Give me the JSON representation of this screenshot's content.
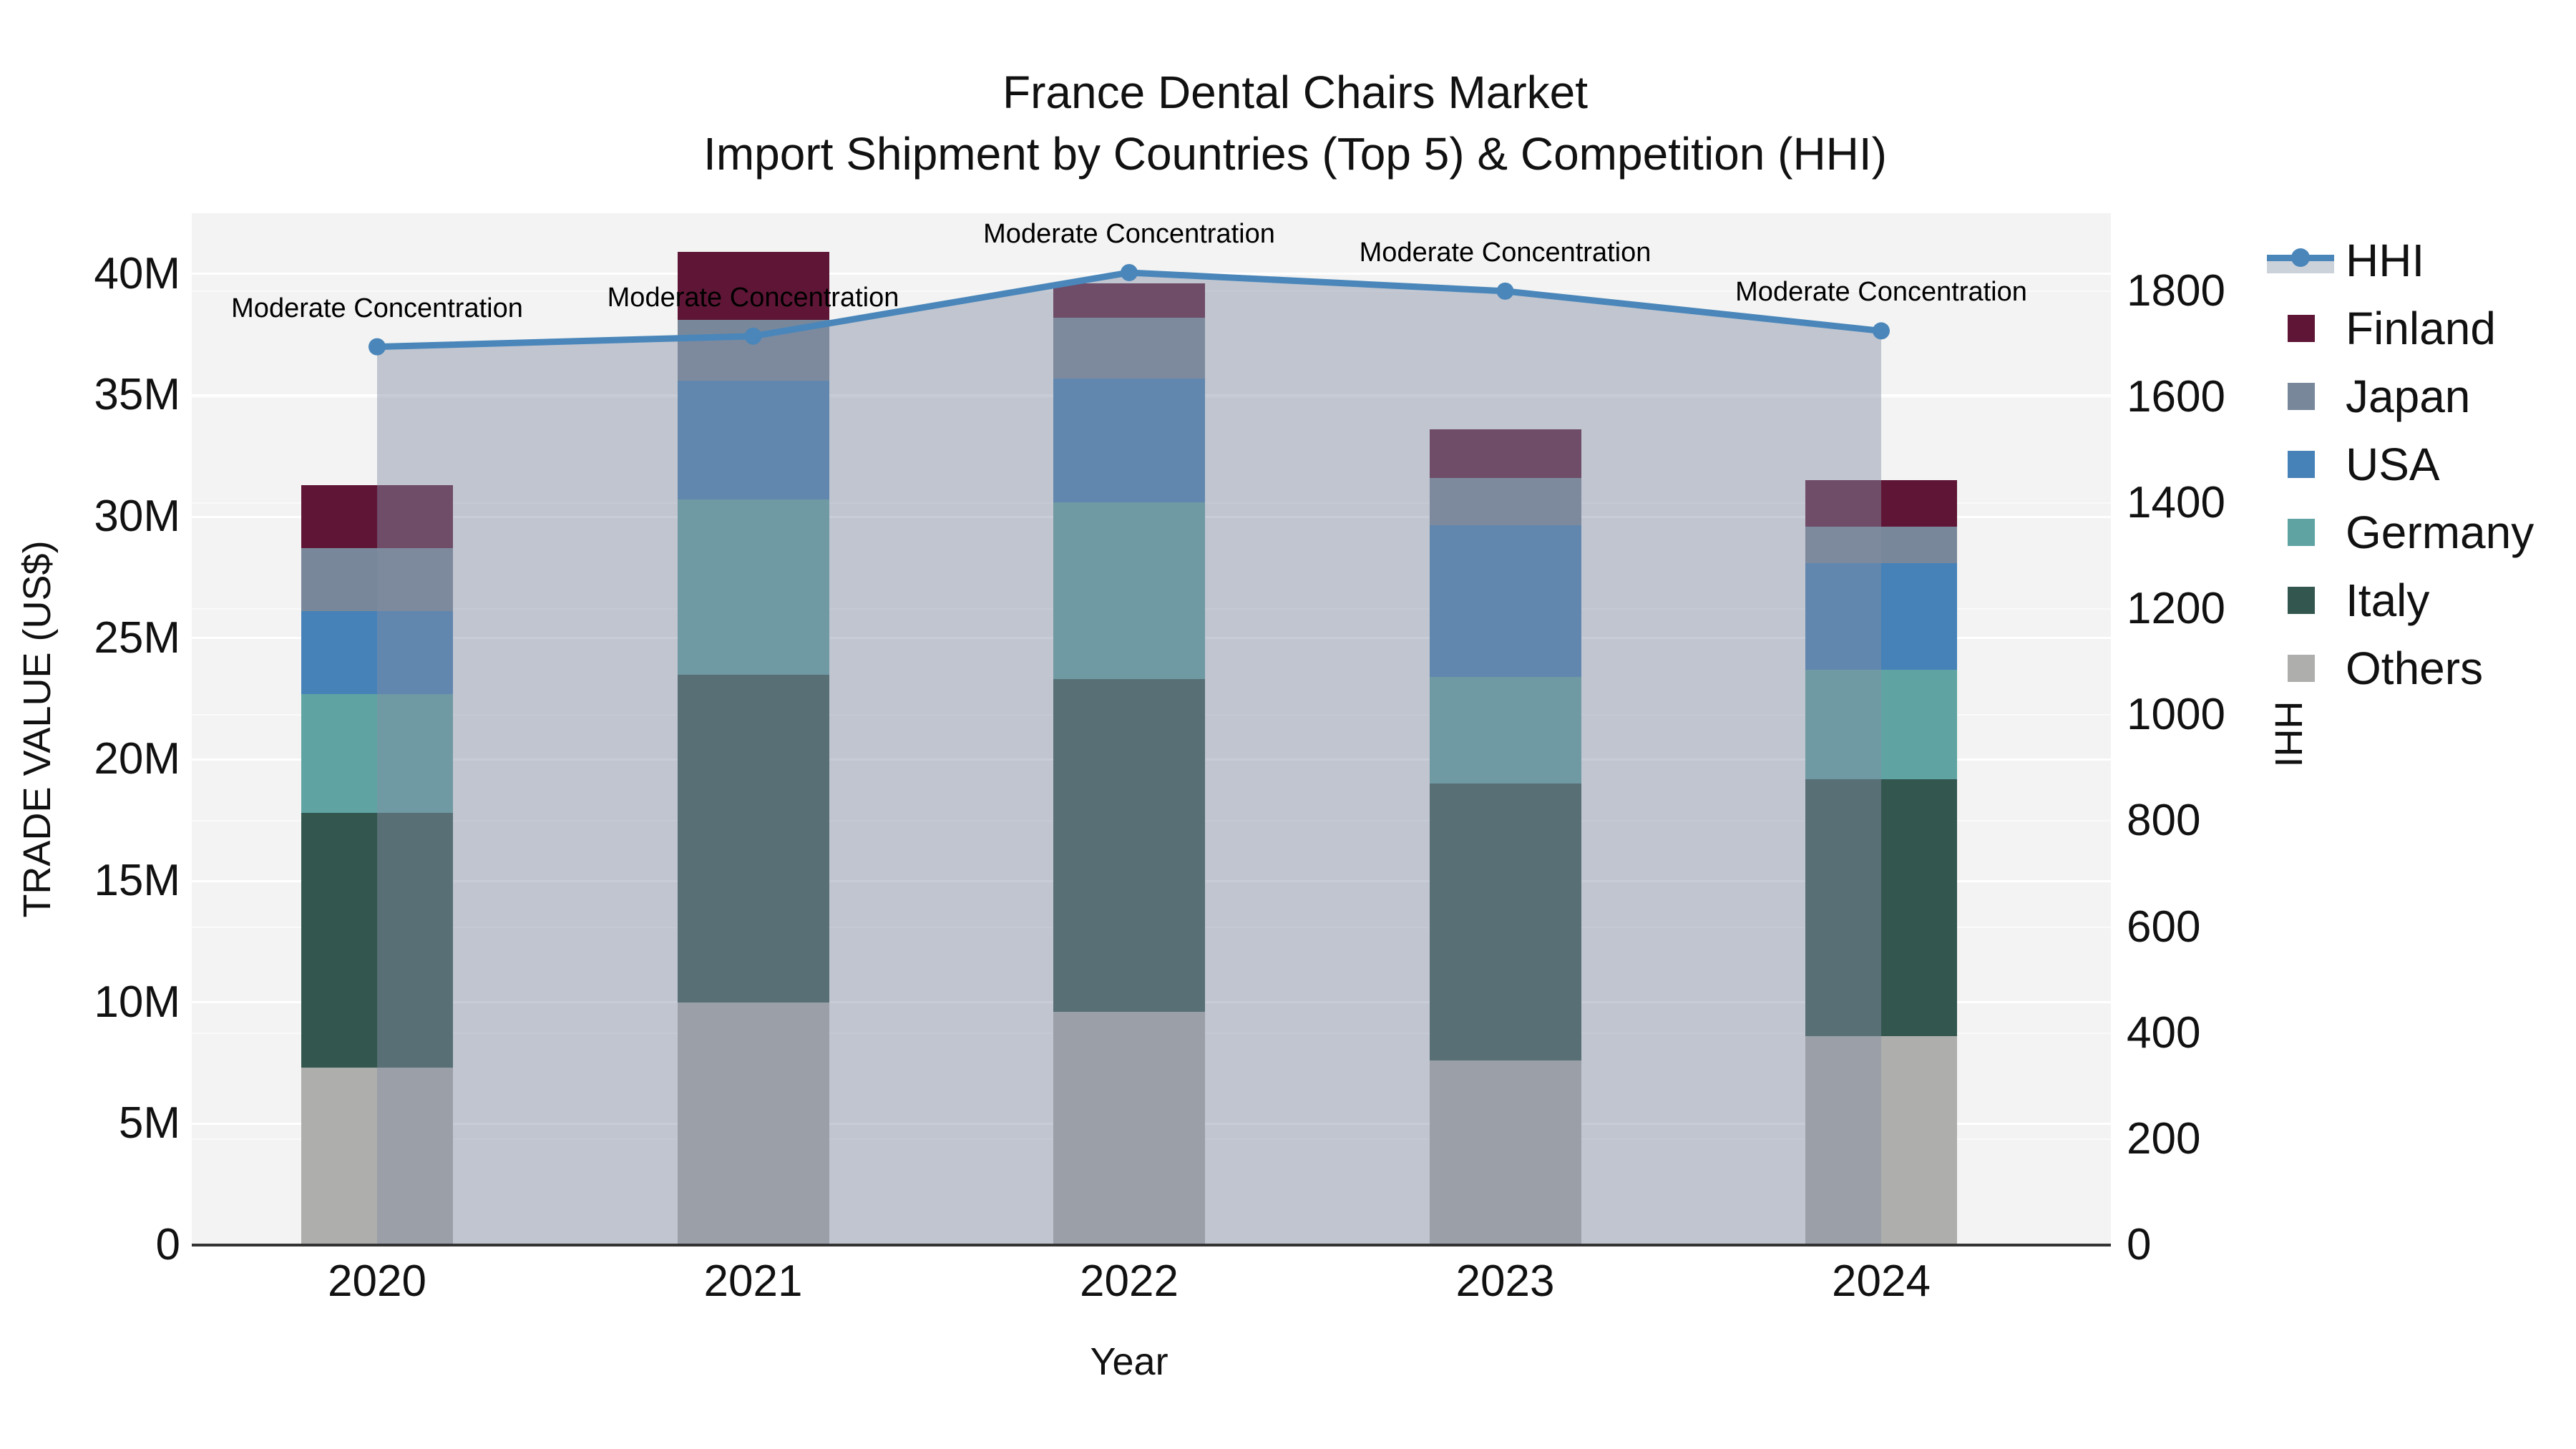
{
  "chart_data": {
    "type": "stacked-bar+line",
    "title": "France Dental Chairs Market",
    "subtitle": "Import Shipment by Countries (Top 5) & Competition (HHI)",
    "xlabel": "Year",
    "ylabel_left": "TRADE VALUE (US$)",
    "ylabel_right": "HHI",
    "categories": [
      "2020",
      "2021",
      "2022",
      "2023",
      "2024"
    ],
    "bar_unit": "million US$",
    "series": [
      {
        "name": "Others",
        "color": "#aeaeac",
        "values": [
          7.3,
          10.0,
          9.6,
          7.6,
          8.6
        ]
      },
      {
        "name": "Italy",
        "color": "#33564f",
        "values": [
          10.5,
          13.5,
          13.7,
          11.4,
          10.6
        ]
      },
      {
        "name": "Germany",
        "color": "#5fa3a2",
        "values": [
          4.9,
          7.2,
          7.3,
          4.4,
          4.5
        ]
      },
      {
        "name": "USA",
        "color": "#4682b8",
        "values": [
          3.4,
          4.9,
          5.1,
          6.25,
          4.4
        ]
      },
      {
        "name": "Japan",
        "color": "#78889a",
        "values": [
          2.6,
          2.5,
          2.5,
          1.95,
          1.5
        ]
      },
      {
        "name": "Finland",
        "color": "#5f1636",
        "values": [
          2.6,
          2.8,
          1.4,
          2.0,
          1.9
        ]
      }
    ],
    "bar_totals": [
      31.3,
      40.9,
      39.6,
      33.6,
      31.5
    ],
    "line": {
      "name": "HHI",
      "color": "#4a86ba",
      "fill_color": "rgba(130,142,165,0.45)",
      "values": [
        1695,
        1715,
        1835,
        1800,
        1725
      ]
    },
    "annotation_text": "Moderate Concentration",
    "annotations": [
      "Moderate Concentration",
      "Moderate Concentration",
      "Moderate Concentration",
      "Moderate Concentration",
      "Moderate Concentration"
    ],
    "legend_order": [
      "HHI",
      "Finland",
      "Japan",
      "USA",
      "Germany",
      "Italy",
      "Others"
    ],
    "legend_position": "right",
    "grid": true,
    "axes": {
      "left": {
        "min": 0,
        "max": 42.5,
        "tick_values": [
          0,
          5,
          10,
          15,
          20,
          25,
          30,
          35,
          40
        ],
        "tick_labels": [
          "0",
          "5M",
          "10M",
          "15M",
          "20M",
          "25M",
          "30M",
          "35M",
          "40M"
        ]
      },
      "right": {
        "min": 0,
        "max": 1947,
        "tick_values": [
          0,
          200,
          400,
          600,
          800,
          1000,
          1200,
          1400,
          1600,
          1800
        ],
        "tick_labels": [
          "0",
          "200",
          "400",
          "600",
          "800",
          "1000",
          "1200",
          "1400",
          "1600",
          "1800"
        ]
      }
    }
  }
}
